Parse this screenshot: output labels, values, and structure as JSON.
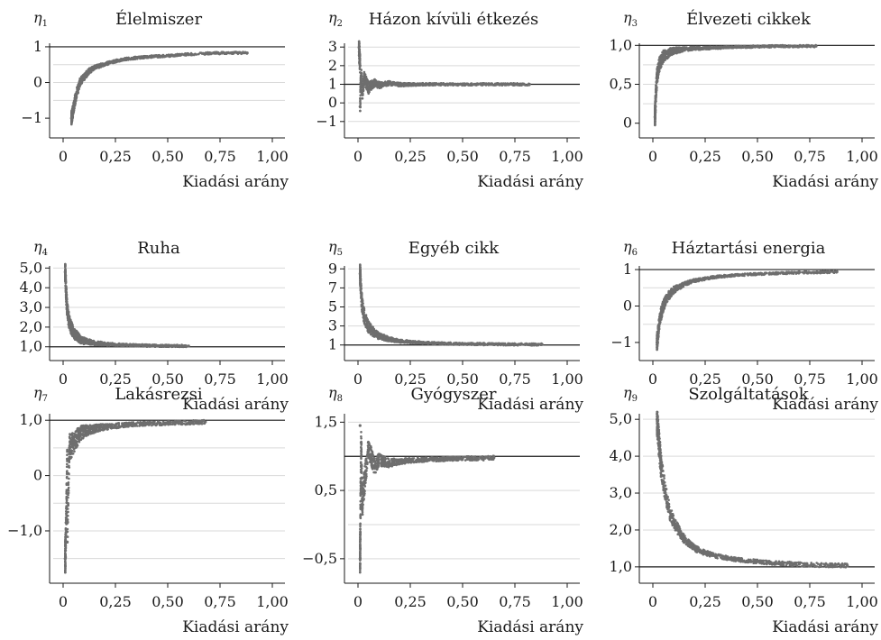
{
  "chart_data": [
    {
      "type": "scatter",
      "eta": {
        "symbol": "η",
        "index": "1"
      },
      "title": "Élelmiszer",
      "xlabel": "Kiadási arány",
      "xlim": [
        0,
        1
      ],
      "ylim": [
        -1.25,
        1.15
      ],
      "xticks": [
        {
          "v": 0,
          "label": "0"
        },
        {
          "v": 0.25,
          "label": "0,25"
        },
        {
          "v": 0.5,
          "label": "0,50"
        },
        {
          "v": 0.75,
          "label": "0,75"
        },
        {
          "v": 1,
          "label": "1,00"
        }
      ],
      "yticks": [
        {
          "v": 1,
          "label": "1"
        },
        {
          "v": 0,
          "label": "0"
        },
        {
          "v": -1,
          "label": "−1"
        }
      ],
      "gridlines": [
        -0.5,
        0,
        0.5
      ],
      "refline": 1,
      "series": [
        {
          "color": "#6e6e6e",
          "points": [
            [
              0.04,
              -1.0
            ],
            [
              0.05,
              -0.7
            ],
            [
              0.06,
              -0.4
            ],
            [
              0.07,
              -0.2
            ],
            [
              0.08,
              0.0
            ],
            [
              0.1,
              0.15
            ],
            [
              0.12,
              0.3
            ],
            [
              0.15,
              0.42
            ],
            [
              0.2,
              0.52
            ],
            [
              0.25,
              0.6
            ],
            [
              0.3,
              0.66
            ],
            [
              0.4,
              0.72
            ],
            [
              0.5,
              0.75
            ],
            [
              0.6,
              0.79
            ],
            [
              0.7,
              0.82
            ],
            [
              0.8,
              0.83
            ],
            [
              0.88,
              0.83
            ]
          ]
        }
      ]
    },
    {
      "type": "scatter",
      "eta": {
        "symbol": "η",
        "index": "2"
      },
      "title": "Házon kívüli étkezés",
      "xlabel": "Kiadási arány",
      "xlim": [
        0,
        1
      ],
      "ylim": [
        -1.3,
        3.3
      ],
      "xticks": [
        {
          "v": 0,
          "label": "0"
        },
        {
          "v": 0.25,
          "label": "0,25"
        },
        {
          "v": 0.5,
          "label": "0,50"
        },
        {
          "v": 0.75,
          "label": "0,75"
        },
        {
          "v": 1,
          "label": "1,00"
        }
      ],
      "yticks": [
        {
          "v": 3,
          "label": "3"
        },
        {
          "v": 2,
          "label": "2"
        },
        {
          "v": 1,
          "label": "1"
        },
        {
          "v": 0,
          "label": "0"
        },
        {
          "v": -1,
          "label": "−1"
        }
      ],
      "gridlines": [
        -1,
        0,
        2,
        3
      ],
      "refline": 1,
      "series": [
        {
          "color": "#6e6e6e",
          "points": [
            [
              0.005,
              3.0
            ],
            [
              0.008,
              2.4
            ],
            [
              0.01,
              2.0
            ],
            [
              0.01,
              -0.2
            ],
            [
              0.015,
              1.6
            ],
            [
              0.02,
              0.5
            ],
            [
              0.03,
              1.3
            ],
            [
              0.05,
              0.8
            ],
            [
              0.08,
              1.1
            ],
            [
              0.1,
              0.95
            ],
            [
              0.15,
              1.05
            ],
            [
              0.2,
              0.98
            ],
            [
              0.3,
              1.0
            ],
            [
              0.4,
              1.0
            ],
            [
              0.5,
              0.99
            ],
            [
              0.6,
              1.0
            ],
            [
              0.7,
              1.0
            ],
            [
              0.82,
              1.0
            ]
          ]
        }
      ]
    },
    {
      "type": "scatter",
      "eta": {
        "symbol": "η",
        "index": "3"
      },
      "title": "Élvezeti cikkek",
      "xlabel": "Kiadási arány",
      "xlim": [
        0,
        1
      ],
      "ylim": [
        -0.05,
        1.05
      ],
      "xticks": [
        {
          "v": 0,
          "label": "0"
        },
        {
          "v": 0.25,
          "label": "0,25"
        },
        {
          "v": 0.5,
          "label": "0,50"
        },
        {
          "v": 0.75,
          "label": "0,75"
        },
        {
          "v": 1,
          "label": "1,00"
        }
      ],
      "yticks": [
        {
          "v": 1,
          "label": "1,0"
        },
        {
          "v": 0.5,
          "label": "0,5"
        },
        {
          "v": 0,
          "label": "0"
        }
      ],
      "gridlines": [
        0.25,
        0.5,
        0.75
      ],
      "refline": 1,
      "series": [
        {
          "color": "#6e6e6e",
          "points": [
            [
              0.01,
              0.08
            ],
            [
              0.015,
              0.4
            ],
            [
              0.02,
              0.6
            ],
            [
              0.03,
              0.75
            ],
            [
              0.05,
              0.86
            ],
            [
              0.08,
              0.91
            ],
            [
              0.1,
              0.93
            ],
            [
              0.15,
              0.95
            ],
            [
              0.2,
              0.96
            ],
            [
              0.3,
              0.97
            ],
            [
              0.4,
              0.98
            ],
            [
              0.5,
              0.985
            ],
            [
              0.6,
              0.99
            ],
            [
              0.7,
              0.99
            ],
            [
              0.78,
              0.99
            ]
          ]
        }
      ]
    },
    {
      "type": "scatter",
      "eta": {
        "symbol": "η",
        "index": "4"
      },
      "title": "Ruha",
      "xlabel": "Kiadási arány",
      "xlim": [
        0,
        1
      ],
      "ylim": [
        0.85,
        5.2
      ],
      "xticks": [
        {
          "v": 0,
          "label": "0"
        },
        {
          "v": 0.25,
          "label": "0,25"
        },
        {
          "v": 0.5,
          "label": "0,50"
        },
        {
          "v": 0.75,
          "label": "0,75"
        },
        {
          "v": 1,
          "label": "1,00"
        }
      ],
      "yticks": [
        {
          "v": 5,
          "label": "5,0"
        },
        {
          "v": 4,
          "label": "4,0"
        },
        {
          "v": 3,
          "label": "3,0"
        },
        {
          "v": 2,
          "label": "2,0"
        },
        {
          "v": 1,
          "label": "1,0"
        }
      ],
      "gridlines": [
        2,
        3,
        4,
        5
      ],
      "refline": 1,
      "series": [
        {
          "color": "#6e6e6e",
          "points": [
            [
              0.01,
              4.8
            ],
            [
              0.015,
              3.6
            ],
            [
              0.02,
              2.8
            ],
            [
              0.03,
              2.2
            ],
            [
              0.05,
              1.7
            ],
            [
              0.08,
              1.4
            ],
            [
              0.1,
              1.3
            ],
            [
              0.15,
              1.2
            ],
            [
              0.2,
              1.14
            ],
            [
              0.3,
              1.09
            ],
            [
              0.4,
              1.06
            ],
            [
              0.5,
              1.05
            ],
            [
              0.6,
              1.04
            ]
          ]
        }
      ]
    },
    {
      "type": "scatter",
      "eta": {
        "symbol": "η",
        "index": "5"
      },
      "title": "Egyéb cikk",
      "xlabel": "Kiadási arány",
      "xlim": [
        0,
        1
      ],
      "ylim": [
        0.5,
        9.5
      ],
      "xticks": [
        {
          "v": 0,
          "label": "0"
        },
        {
          "v": 0.25,
          "label": "0,25"
        },
        {
          "v": 0.5,
          "label": "0,50"
        },
        {
          "v": 0.75,
          "label": "0,75"
        },
        {
          "v": 1,
          "label": "1,00"
        }
      ],
      "yticks": [
        {
          "v": 9,
          "label": "9"
        },
        {
          "v": 7,
          "label": "7"
        },
        {
          "v": 5,
          "label": "5"
        },
        {
          "v": 3,
          "label": "3"
        },
        {
          "v": 1,
          "label": "1"
        }
      ],
      "gridlines": [
        3,
        5,
        7,
        9
      ],
      "refline": 1,
      "series": [
        {
          "color": "#6e6e6e",
          "points": [
            [
              0.01,
              8.5
            ],
            [
              0.015,
              6.5
            ],
            [
              0.02,
              5.2
            ],
            [
              0.03,
              4.0
            ],
            [
              0.05,
              2.9
            ],
            [
              0.08,
              2.2
            ],
            [
              0.1,
              1.95
            ],
            [
              0.15,
              1.6
            ],
            [
              0.2,
              1.4
            ],
            [
              0.3,
              1.25
            ],
            [
              0.4,
              1.16
            ],
            [
              0.5,
              1.12
            ],
            [
              0.6,
              1.09
            ],
            [
              0.7,
              1.07
            ],
            [
              0.8,
              1.06
            ],
            [
              0.88,
              1.05
            ]
          ]
        }
      ]
    },
    {
      "type": "scatter",
      "eta": {
        "symbol": "η",
        "index": "6"
      },
      "title": "Háztartási energia",
      "xlabel": "Kiadási arány",
      "xlim": [
        0,
        1
      ],
      "ylim": [
        -1.2,
        1.15
      ],
      "xticks": [
        {
          "v": 0,
          "label": "0"
        },
        {
          "v": 0.25,
          "label": "0,25"
        },
        {
          "v": 0.5,
          "label": "0,50"
        },
        {
          "v": 0.75,
          "label": "0,75"
        },
        {
          "v": 1,
          "label": "1,00"
        }
      ],
      "yticks": [
        {
          "v": 1,
          "label": "1"
        },
        {
          "v": 0,
          "label": "0"
        },
        {
          "v": -1,
          "label": "−1"
        }
      ],
      "gridlines": [
        -0.5,
        0,
        0.5
      ],
      "refline": 1,
      "series": [
        {
          "color": "#6e6e6e",
          "points": [
            [
              0.02,
              -1.0
            ],
            [
              0.03,
              -0.5
            ],
            [
              0.04,
              -0.2
            ],
            [
              0.05,
              0.0
            ],
            [
              0.07,
              0.25
            ],
            [
              0.1,
              0.45
            ],
            [
              0.15,
              0.6
            ],
            [
              0.2,
              0.7
            ],
            [
              0.3,
              0.8
            ],
            [
              0.4,
              0.85
            ],
            [
              0.5,
              0.88
            ],
            [
              0.6,
              0.9
            ],
            [
              0.7,
              0.92
            ],
            [
              0.8,
              0.93
            ],
            [
              0.88,
              0.94
            ]
          ]
        }
      ]
    },
    {
      "type": "scatter",
      "eta": {
        "symbol": "η",
        "index": "7"
      },
      "title": "Lakásrezsi",
      "xlabel": "Kiadási arány",
      "xlim": [
        0,
        1
      ],
      "ylim": [
        -1.75,
        1.15
      ],
      "xticks": [
        {
          "v": 0,
          "label": "0"
        },
        {
          "v": 0.25,
          "label": "0,25"
        },
        {
          "v": 0.5,
          "label": "0,50"
        },
        {
          "v": 0.75,
          "label": "0,75"
        },
        {
          "v": 1,
          "label": "1,00"
        }
      ],
      "yticks": [
        {
          "v": 1,
          "label": "1,0"
        },
        {
          "v": 0,
          "label": "0"
        },
        {
          "v": -1,
          "label": "−1,0"
        }
      ],
      "gridlines": [
        -1.5,
        -1,
        -0.5,
        0,
        0.5
      ],
      "refline": 1,
      "series": [
        {
          "color": "#6e6e6e",
          "points": [
            [
              0.01,
              -1.5
            ],
            [
              0.015,
              -0.8
            ],
            [
              0.02,
              0.3
            ],
            [
              0.02,
              -1.2
            ],
            [
              0.03,
              0.5
            ],
            [
              0.05,
              0.6
            ],
            [
              0.08,
              0.75
            ],
            [
              0.1,
              0.8
            ],
            [
              0.15,
              0.85
            ],
            [
              0.2,
              0.88
            ],
            [
              0.3,
              0.92
            ],
            [
              0.4,
              0.94
            ],
            [
              0.5,
              0.95
            ],
            [
              0.6,
              0.96
            ],
            [
              0.68,
              0.97
            ]
          ]
        }
      ]
    },
    {
      "type": "scatter",
      "eta": {
        "symbol": "η",
        "index": "8"
      },
      "title": "Gyógyszer",
      "xlabel": "Kiadási arány",
      "xlim": [
        0,
        1
      ],
      "ylim": [
        -0.7,
        1.65
      ],
      "xticks": [
        {
          "v": 0,
          "label": "0"
        },
        {
          "v": 0.25,
          "label": "0,25"
        },
        {
          "v": 0.5,
          "label": "0,50"
        },
        {
          "v": 0.75,
          "label": "0,75"
        },
        {
          "v": 1,
          "label": "1,00"
        }
      ],
      "yticks": [
        {
          "v": 1.5,
          "label": "1,5"
        },
        {
          "v": 0.5,
          "label": "0,5"
        },
        {
          "v": -0.5,
          "label": "−0,5"
        }
      ],
      "gridlines": [
        -0.5,
        0,
        0.5,
        1.5
      ],
      "refline": 1,
      "series": [
        {
          "color": "#6e6e6e",
          "points": [
            [
              0.01,
              1.45
            ],
            [
              0.01,
              -0.5
            ],
            [
              0.015,
              1.2
            ],
            [
              0.02,
              0.3
            ],
            [
              0.03,
              0.6
            ],
            [
              0.05,
              1.1
            ],
            [
              0.08,
              0.85
            ],
            [
              0.1,
              0.95
            ],
            [
              0.15,
              0.9
            ],
            [
              0.2,
              0.93
            ],
            [
              0.3,
              0.95
            ],
            [
              0.4,
              0.96
            ],
            [
              0.5,
              0.97
            ],
            [
              0.6,
              0.97
            ],
            [
              0.65,
              0.98
            ]
          ]
        }
      ]
    },
    {
      "type": "scatter",
      "eta": {
        "symbol": "η",
        "index": "9"
      },
      "title": "Szolgáltatások",
      "xlabel": "Kiadási arány",
      "xlim": [
        0,
        1
      ],
      "ylim": [
        0.85,
        5.2
      ],
      "xticks": [
        {
          "v": 0,
          "label": "0"
        },
        {
          "v": 0.25,
          "label": "0,25"
        },
        {
          "v": 0.5,
          "label": "0,50"
        },
        {
          "v": 0.75,
          "label": "0,75"
        },
        {
          "v": 1,
          "label": "1,00"
        }
      ],
      "yticks": [
        {
          "v": 5,
          "label": "5,0"
        },
        {
          "v": 4,
          "label": "4,0"
        },
        {
          "v": 3,
          "label": "3,0"
        },
        {
          "v": 2,
          "label": "2,0"
        },
        {
          "v": 1,
          "label": "1,0"
        }
      ],
      "gridlines": [
        2,
        3,
        4,
        5
      ],
      "refline": 1,
      "series": [
        {
          "color": "#6e6e6e",
          "points": [
            [
              0.02,
              5.0
            ],
            [
              0.03,
              4.3
            ],
            [
              0.04,
              3.7
            ],
            [
              0.06,
              3.0
            ],
            [
              0.08,
              2.5
            ],
            [
              0.1,
              2.2
            ],
            [
              0.15,
              1.75
            ],
            [
              0.2,
              1.5
            ],
            [
              0.25,
              1.38
            ],
            [
              0.3,
              1.3
            ],
            [
              0.4,
              1.2
            ],
            [
              0.5,
              1.14
            ],
            [
              0.6,
              1.1
            ],
            [
              0.7,
              1.07
            ],
            [
              0.8,
              1.05
            ],
            [
              0.9,
              1.04
            ],
            [
              0.93,
              1.03
            ]
          ]
        }
      ]
    }
  ]
}
